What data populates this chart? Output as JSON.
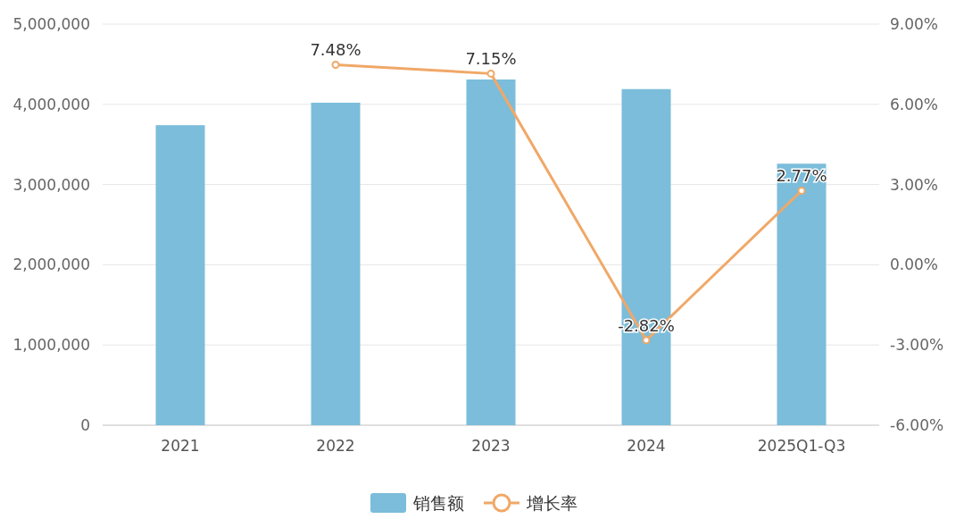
{
  "chart_data": {
    "type": "bar",
    "categories": [
      "2021",
      "2022",
      "2023",
      "2024",
      "2025Q1-Q3"
    ],
    "series": [
      {
        "name": "销售额",
        "color": "#7bbdda",
        "values": [
          3740000,
          4020000,
          4310000,
          4190000,
          3260000
        ]
      },
      {
        "name": "增长率",
        "type": "line",
        "axis": "y2",
        "color": "#f0a868",
        "values": [
          null,
          7.48,
          7.15,
          -2.82,
          2.77
        ],
        "value_labels": [
          null,
          "7.48%",
          "7.15%",
          "-2.82%",
          "2.77%"
        ]
      }
    ],
    "ylim": [
      0,
      5000000
    ],
    "yticks": [
      {
        "value": 0,
        "label": "0"
      },
      {
        "value": 1000000,
        "label": "1,000,000"
      },
      {
        "value": 2000000,
        "label": "2,000,000"
      },
      {
        "value": 3000000,
        "label": "3,000,000"
      },
      {
        "value": 4000000,
        "label": "4,000,000"
      },
      {
        "value": 5000000,
        "label": "5,000,000"
      }
    ],
    "y2lim": [
      -6,
      9
    ],
    "y2ticks": [
      {
        "value": -6,
        "label": "-6.00%"
      },
      {
        "value": -3,
        "label": "-3.00%"
      },
      {
        "value": 0,
        "label": "0.00%"
      },
      {
        "value": 3,
        "label": "3.00%"
      },
      {
        "value": 6,
        "label": "6.00%"
      },
      {
        "value": 9,
        "label": "9.00%"
      }
    ],
    "grid": "y",
    "legend": "bottom",
    "marker": "circle",
    "line_style": "solid"
  }
}
